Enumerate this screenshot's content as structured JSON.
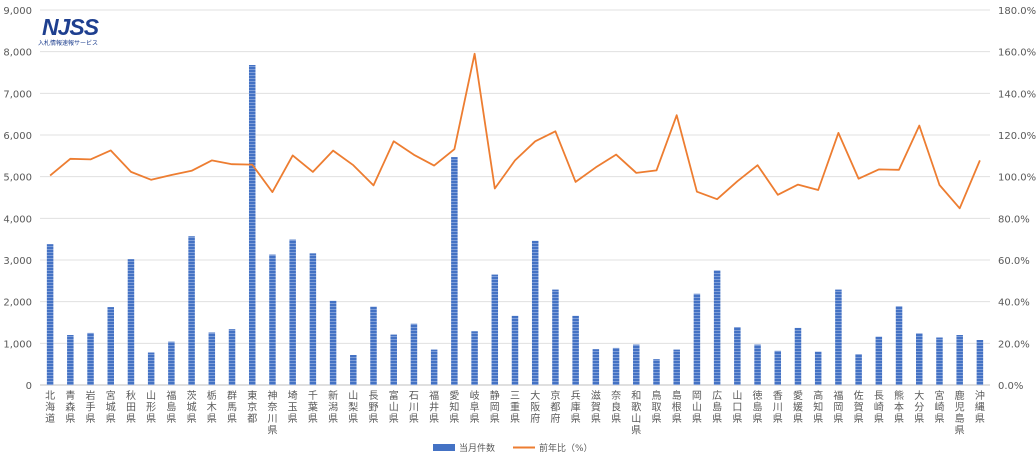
{
  "logo": {
    "text": "NJSS",
    "subtext": "入札情報速報サービス"
  },
  "chart_data": {
    "type": "bar+line",
    "categories": [
      "北海道",
      "青森県",
      "岩手県",
      "宮城県",
      "秋田県",
      "山形県",
      "福島県",
      "茨城県",
      "栃木県",
      "群馬県",
      "東京都",
      "神奈川県",
      "埼玉県",
      "千葉県",
      "新潟県",
      "山梨県",
      "長野県",
      "富山県",
      "石川県",
      "福井県",
      "愛知県",
      "岐阜県",
      "静岡県",
      "三重県",
      "大阪府",
      "京都府",
      "兵庫県",
      "滋賀県",
      "奈良県",
      "和歌山県",
      "鳥取県",
      "島根県",
      "岡山県",
      "広島県",
      "山口県",
      "徳島県",
      "香川県",
      "愛媛県",
      "高知県",
      "福岡県",
      "佐賀県",
      "長崎県",
      "熊本県",
      "大分県",
      "宮崎県",
      "鹿児島県",
      "沖縄県"
    ],
    "series": [
      {
        "name": "当月件数",
        "type": "bar",
        "axis": "left",
        "color": "#4472c4",
        "values": [
          3380,
          1200,
          1250,
          1870,
          3020,
          780,
          1040,
          3570,
          1260,
          1340,
          7680,
          3130,
          3490,
          3160,
          2020,
          720,
          1880,
          1210,
          1470,
          850,
          5470,
          1290,
          2650,
          1660,
          3460,
          2290,
          1660,
          860,
          890,
          970,
          620,
          850,
          2190,
          2750,
          1390,
          970,
          820,
          1370,
          800,
          2290,
          740,
          1160,
          1890,
          1240,
          1140,
          1200,
          1080
        ]
      },
      {
        "name": "前年比（%）",
        "type": "line",
        "axis": "right",
        "color": "#ed7d31",
        "values": [
          100.5,
          108.6,
          108.3,
          112.6,
          102.3,
          98.5,
          100.8,
          102.8,
          107.8,
          106.0,
          105.8,
          92.6,
          110.2,
          102.3,
          112.5,
          105.5,
          95.8,
          117.0,
          110.5,
          105.3,
          113.2,
          159.0,
          94.3,
          107.8,
          117.0,
          121.8,
          97.5,
          104.5,
          110.6,
          101.8,
          103.0,
          129.5,
          92.8,
          89.2,
          97.8,
          105.5,
          91.3,
          96.2,
          93.6,
          121.0,
          99.0,
          103.5,
          103.3,
          124.5,
          96.0,
          84.8,
          107.8
        ]
      }
    ],
    "y_left": {
      "min": 0,
      "max": 9000,
      "step": 1000,
      "tick_labels": [
        "0",
        "1,000",
        "2,000",
        "3,000",
        "4,000",
        "5,000",
        "6,000",
        "7,000",
        "8,000",
        "9,000"
      ]
    },
    "y_right": {
      "min": 0,
      "max": 180,
      "step": 20,
      "tick_labels": [
        "0.0%",
        "20.0%",
        "40.0%",
        "60.0%",
        "80.0%",
        "100.0%",
        "120.0%",
        "140.0%",
        "160.0%",
        "180.0%"
      ]
    },
    "grid": true,
    "legend": {
      "position": "bottom",
      "entries": [
        "当月件数",
        "前年比（%）"
      ]
    }
  }
}
